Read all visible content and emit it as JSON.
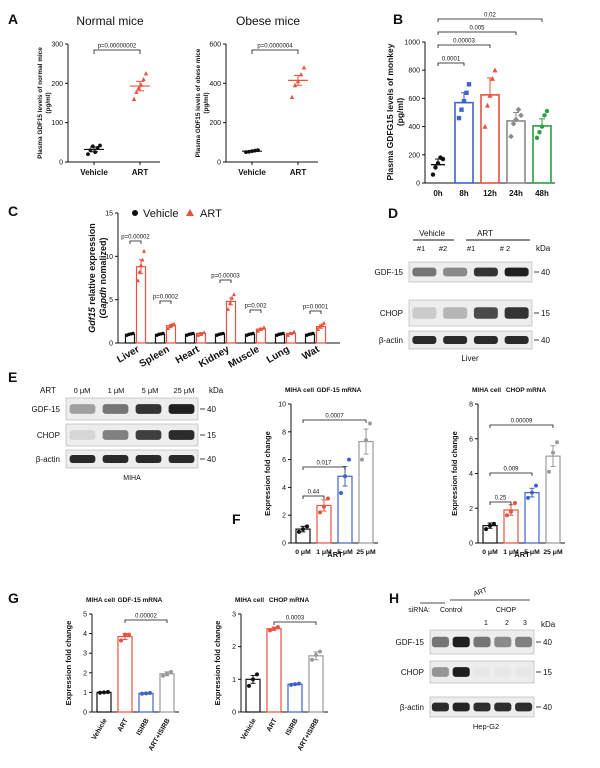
{
  "panels": {
    "A": {
      "letter": "A",
      "left": {
        "title": "Normal mice",
        "ylabel": "Plasma GDF15 levels of normal mice",
        "ylabel_unit": "(pg/ml)",
        "yticks": [
          "0",
          "100",
          "200",
          "300"
        ],
        "categories": [
          "Vehicle",
          "ART"
        ],
        "pvalue": "p=0.00000002"
      },
      "right": {
        "title": "Obese mice",
        "ylabel": "Plasma GDF15 levels of obese mice",
        "ylabel_unit": "(pg/ml)",
        "yticks": [
          "0",
          "200",
          "400",
          "600"
        ],
        "categories": [
          "Vehicle",
          "ART"
        ],
        "pvalue": "p=0.0000004"
      }
    },
    "B": {
      "letter": "B",
      "ylabel": "Plasma GDFG15 levels of monkey",
      "ylabel_unit": "(pg/ml)",
      "yticks": [
        "0",
        "200",
        "400",
        "600",
        "800",
        "1000"
      ],
      "categories": [
        "0h",
        "8h",
        "12h",
        "24h",
        "48h"
      ],
      "pvalues": [
        "0.0001",
        "0.00003",
        "0.005",
        "0.02"
      ]
    },
    "C": {
      "letter": "C",
      "ylabel_gene": "Gdf15",
      "ylabel_rest": " relative expression",
      "ylabel_line2_pre": "(",
      "ylabel_gene2": "Gapdh",
      "ylabel_line2_post": " nomalized)",
      "yticks": [
        "0",
        "5",
        "10",
        "15"
      ],
      "legend": [
        "Vehicle",
        "ART"
      ],
      "categories": [
        "Liver",
        "Spleen",
        "Heart",
        "Kidney",
        "Muscle",
        "Lung",
        "Wat"
      ],
      "pvalues": [
        "p=0.00002",
        "p=0.0002",
        "p=0.00003",
        "p=0.002",
        "p=0.0001"
      ]
    },
    "D": {
      "letter": "D",
      "group_labels": [
        "Vehicle",
        "ART"
      ],
      "lane_labels": [
        "#1",
        "#2",
        "#1",
        "# 2"
      ],
      "row_labels": [
        "GDF-15",
        "CHOP",
        "β-actin"
      ],
      "kda_label": "kDa",
      "markers": [
        "40",
        "15",
        "40"
      ],
      "caption": "Liver"
    },
    "E": {
      "letter": "E",
      "treatment": "ART",
      "lane_labels": [
        "0 μM",
        "1 μM",
        "5 μM",
        "25 μM"
      ],
      "row_labels": [
        "GDF-15",
        "CHOP",
        "β-actin"
      ],
      "kda_label": "kDa",
      "markers": [
        "40",
        "15",
        "40"
      ],
      "caption": "MIHA"
    },
    "F": {
      "letter": "F",
      "left": {
        "cell": "MIHA cell",
        "title": "GDF-15 mRNA",
        "ylabel": "Expression fold change",
        "yticks": [
          "0",
          "2",
          "4",
          "6",
          "8",
          "10"
        ],
        "categories": [
          "0 μM",
          "1 μM",
          "5 μM",
          "25 μM"
        ],
        "xlabel": "ART",
        "pvalues": [
          "0.44",
          "0.017",
          "0.0007"
        ]
      },
      "right": {
        "cell": "MIHA cell",
        "title": "CHOP mRNA",
        "ylabel": "Expression fold change",
        "yticks": [
          "0",
          "2",
          "4",
          "6",
          "8"
        ],
        "categories": [
          "0 μM",
          "1 μM",
          "5 μM",
          "25 μM"
        ],
        "xlabel": "ART",
        "pvalues": [
          "0.25",
          "0.009",
          "0.00009"
        ]
      }
    },
    "G": {
      "letter": "G",
      "left": {
        "cell": "MIHA cell",
        "title": "GDF-15 mRNA",
        "ylabel": "Expression fold change",
        "yticks": [
          "0",
          "1",
          "2",
          "3",
          "4",
          "5"
        ],
        "categories": [
          "Vehicle",
          "ART",
          "ISIRB",
          "ART+ISIRB"
        ],
        "pvalue": "0.00002"
      },
      "right": {
        "cell": "MIHA cell",
        "title": "CHOP mRNA",
        "ylabel": "Expression fold change",
        "yticks": [
          "0",
          "1",
          "2",
          "3"
        ],
        "categories": [
          "Vehicle",
          "ART",
          "ISIRB",
          "ART+ISIRB"
        ],
        "pvalue": "0.0003"
      }
    },
    "H": {
      "letter": "H",
      "treatment": "ART",
      "sirna_label": "siRNA:",
      "control_label": "Control",
      "chop_label": "CHOP",
      "lane_numbers": [
        "1",
        "2",
        "3"
      ],
      "row_labels": [
        "GDF-15",
        "CHOP",
        "β-actin"
      ],
      "kda_label": "kDa",
      "markers": [
        "40",
        "15",
        "40"
      ],
      "caption": "Hep-G2"
    }
  },
  "chart_data": [
    {
      "id": "A-normal",
      "type": "scatter",
      "title": "Normal mice",
      "ylabel": "Plasma GDF15 levels of normal mice (pg/ml)",
      "ylim": [
        0,
        300
      ],
      "categories": [
        "Vehicle",
        "ART"
      ],
      "means": [
        32,
        193
      ],
      "sem": [
        6,
        12
      ],
      "points": [
        [
          20,
          30,
          40,
          25,
          36,
          42
        ],
        [
          160,
          178,
          188,
          196,
          210,
          225
        ]
      ]
    },
    {
      "id": "A-obese",
      "type": "scatter",
      "title": "Obese mice",
      "ylabel": "Plasma GDF15 levels of obese mice (pg/ml)",
      "ylim": [
        0,
        600
      ],
      "categories": [
        "Vehicle",
        "ART"
      ],
      "means": [
        55,
        415
      ],
      "sem": [
        3,
        25
      ],
      "points": [
        [
          50,
          52,
          55,
          58,
          60
        ],
        [
          330,
          390,
          410,
          445,
          480
        ]
      ]
    },
    {
      "id": "B",
      "type": "bar",
      "ylabel": "Plasma GDFG15 levels of monkey (pg/ml)",
      "ylim": [
        0,
        1000
      ],
      "categories": [
        "0h",
        "8h",
        "12h",
        "24h",
        "48h"
      ],
      "values": [
        130,
        570,
        625,
        440,
        405
      ],
      "sem": [
        40,
        70,
        120,
        60,
        50
      ],
      "points": [
        [
          60,
          110,
          140,
          180,
          170
        ],
        [
          460,
          520,
          580,
          640,
          700
        ],
        [
          400,
          550,
          620,
          740,
          800
        ],
        [
          330,
          420,
          450,
          520,
          480
        ],
        [
          320,
          360,
          400,
          480,
          510
        ]
      ]
    },
    {
      "id": "C",
      "type": "bar",
      "ylabel": "Gdf15 relative expression (Gapdh nomalized)",
      "ylim": [
        0,
        15
      ],
      "categories": [
        "Liver",
        "Spleen",
        "Heart",
        "Kidney",
        "Muscle",
        "Lung",
        "Wat"
      ],
      "series": [
        {
          "name": "Vehicle",
          "values": [
            1,
            1,
            1,
            1,
            1,
            1,
            1
          ]
        },
        {
          "name": "ART",
          "values": [
            8.8,
            2.0,
            1.1,
            4.8,
            1.6,
            1.1,
            1.9
          ]
        }
      ]
    },
    {
      "id": "F-GDF15",
      "type": "bar",
      "title": "GDF-15 mRNA",
      "ylabel": "Expression fold change",
      "ylim": [
        0,
        10
      ],
      "categories": [
        "0 μM",
        "1 μM",
        "5 μM",
        "25 μM"
      ],
      "xlabel": "ART",
      "values": [
        1.0,
        2.7,
        4.8,
        7.3
      ],
      "sem": [
        0.2,
        0.4,
        0.7,
        0.9
      ],
      "points": [
        [
          0.8,
          1.0,
          1.2
        ],
        [
          2.2,
          2.6,
          3.2
        ],
        [
          3.6,
          4.8,
          6.0
        ],
        [
          6.0,
          7.4,
          8.6
        ]
      ]
    },
    {
      "id": "F-CHOP",
      "type": "bar",
      "title": "CHOP mRNA",
      "ylabel": "Expression fold change",
      "ylim": [
        0,
        8
      ],
      "categories": [
        "0 μM",
        "1 μM",
        "5 μM",
        "25 μM"
      ],
      "xlabel": "ART",
      "values": [
        1.0,
        1.9,
        2.9,
        5.0
      ],
      "sem": [
        0.15,
        0.3,
        0.25,
        0.6
      ],
      "points": [
        [
          0.8,
          1.0,
          1.1
        ],
        [
          1.6,
          1.8,
          2.3
        ],
        [
          2.6,
          2.9,
          3.3
        ],
        [
          4.1,
          5.2,
          5.8
        ]
      ]
    },
    {
      "id": "G-GDF15",
      "type": "bar",
      "title": "GDF-15 mRNA",
      "ylabel": "Expression fold change",
      "ylim": [
        0,
        5
      ],
      "categories": [
        "Vehicle",
        "ART",
        "ISIRB",
        "ART+ISIRB"
      ],
      "values": [
        1.0,
        3.85,
        0.95,
        1.95
      ],
      "sem": [
        0.03,
        0.15,
        0.03,
        0.1
      ],
      "points": [
        [
          0.98,
          1.0,
          1.02
        ],
        [
          3.65,
          3.95,
          3.95
        ],
        [
          0.93,
          0.95,
          0.97
        ],
        [
          1.85,
          1.95,
          2.05
        ]
      ]
    },
    {
      "id": "G-CHOP",
      "type": "bar",
      "title": "CHOP mRNA",
      "ylabel": "Expression fold change",
      "ylim": [
        0,
        3
      ],
      "categories": [
        "Vehicle",
        "ART",
        "ISIRB",
        "ART+ISIRB"
      ],
      "values": [
        1.0,
        2.55,
        0.85,
        1.72
      ],
      "sem": [
        0.12,
        0.05,
        0.02,
        0.12
      ],
      "points": [
        [
          0.8,
          1.0,
          1.15
        ],
        [
          2.5,
          2.55,
          2.6
        ],
        [
          0.83,
          0.85,
          0.87
        ],
        [
          1.6,
          1.75,
          1.85
        ]
      ]
    }
  ],
  "colors": {
    "ink": "#111111",
    "ink_light": "#4d4d4d",
    "vehicle": "#111111",
    "art": "#e8523f",
    "h8": "#3f63c9",
    "h12": "#e8523f",
    "h24": "#8a8a8a",
    "h48": "#2a9f43",
    "isirb": "#3f63c9",
    "combo": "#9a9a9a"
  }
}
